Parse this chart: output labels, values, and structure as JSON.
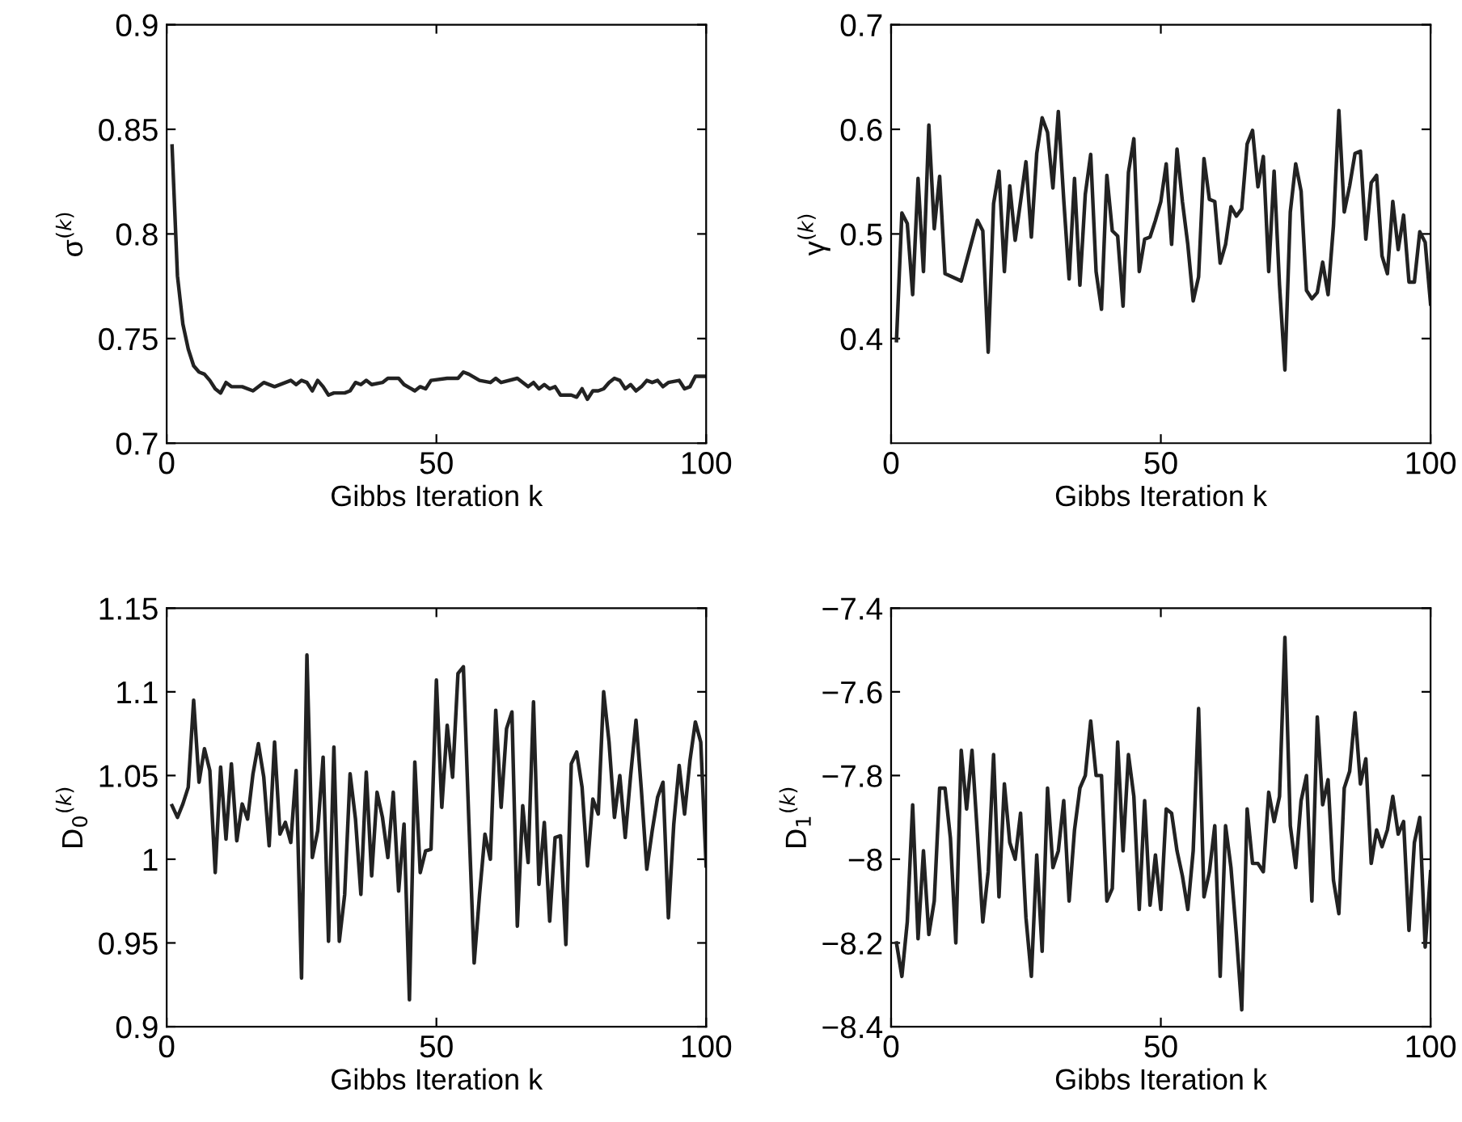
{
  "chart_data": [
    {
      "type": "line",
      "xlabel": "Gibbs Iteration k",
      "ylabel": "σ$^{(k)}$",
      "xlim": [
        0,
        100
      ],
      "xticks": [
        0,
        50,
        100
      ],
      "ylim": [
        0.7,
        0.9
      ],
      "yticks": [
        0.7,
        0.75,
        0.8,
        0.85,
        0.9
      ],
      "grid": false,
      "legend": false,
      "marker": "none",
      "line_style": "solid",
      "series": [
        {
          "color": "#222222",
          "x": [
            1,
            2,
            3,
            4,
            5,
            6,
            7,
            8,
            9,
            10,
            11,
            12,
            14,
            16,
            18,
            20,
            23,
            24,
            25,
            26,
            27,
            28,
            29,
            30,
            31,
            33,
            34,
            35,
            36,
            37,
            38,
            40,
            41,
            43,
            44,
            46,
            47,
            48,
            49,
            52,
            54,
            55,
            56,
            58,
            60,
            61,
            62,
            65,
            67,
            68,
            69,
            70,
            71,
            72,
            73,
            75,
            76,
            77,
            78,
            79,
            80,
            81,
            82,
            83,
            84,
            85,
            86,
            87,
            88,
            89,
            90,
            91,
            92,
            93,
            95,
            96,
            97,
            98,
            100
          ],
          "values": [
            0.842,
            0.78,
            0.757,
            0.745,
            0.737,
            0.734,
            0.733,
            0.73,
            0.726,
            0.724,
            0.729,
            0.727,
            0.727,
            0.725,
            0.729,
            0.727,
            0.73,
            0.728,
            0.73,
            0.729,
            0.725,
            0.73,
            0.727,
            0.723,
            0.724,
            0.724,
            0.725,
            0.729,
            0.728,
            0.73,
            0.728,
            0.729,
            0.731,
            0.731,
            0.728,
            0.725,
            0.727,
            0.726,
            0.73,
            0.731,
            0.731,
            0.734,
            0.733,
            0.73,
            0.729,
            0.731,
            0.729,
            0.731,
            0.727,
            0.729,
            0.726,
            0.728,
            0.726,
            0.727,
            0.723,
            0.723,
            0.722,
            0.726,
            0.721,
            0.725,
            0.725,
            0.726,
            0.729,
            0.731,
            0.73,
            0.726,
            0.728,
            0.725,
            0.727,
            0.73,
            0.729,
            0.73,
            0.727,
            0.729,
            0.73,
            0.726,
            0.727,
            0.732,
            0.732
          ]
        }
      ]
    },
    {
      "type": "line",
      "xlabel": "Gibbs Iteration k",
      "ylabel": "γ$^{(k)}$",
      "xlim": [
        0,
        100
      ],
      "xticks": [
        0,
        50,
        100
      ],
      "ylim": [
        0.3,
        0.7
      ],
      "yticks": [
        0.4,
        0.5,
        0.6,
        0.7
      ],
      "grid": false,
      "legend": false,
      "marker": "none",
      "line_style": "solid",
      "series": [
        {
          "color": "#222222",
          "x": [
            1,
            2,
            3,
            4,
            5,
            6,
            7,
            8,
            9,
            10,
            13,
            16,
            17,
            18,
            19,
            20,
            21,
            22,
            23,
            24,
            25,
            26,
            27,
            28,
            29,
            30,
            31,
            32,
            33,
            34,
            35,
            36,
            37,
            38,
            39,
            40,
            41,
            42,
            43,
            44,
            45,
            46,
            47,
            48,
            49,
            50,
            51,
            52,
            53,
            54,
            55,
            56,
            57,
            58,
            59,
            60,
            61,
            62,
            63,
            64,
            65,
            66,
            67,
            68,
            69,
            70,
            71,
            72,
            73,
            74,
            75,
            76,
            77,
            78,
            79,
            80,
            81,
            82,
            83,
            84,
            85,
            86,
            87,
            88,
            89,
            90,
            91,
            92,
            93,
            94,
            95,
            96,
            97,
            98,
            99,
            100
          ],
          "values": [
            0.398,
            0.52,
            0.51,
            0.442,
            0.553,
            0.464,
            0.604,
            0.505,
            0.555,
            0.462,
            0.455,
            0.513,
            0.503,
            0.387,
            0.529,
            0.56,
            0.464,
            0.546,
            0.494,
            0.531,
            0.569,
            0.497,
            0.577,
            0.611,
            0.597,
            0.544,
            0.617,
            0.533,
            0.457,
            0.553,
            0.451,
            0.538,
            0.576,
            0.464,
            0.428,
            0.556,
            0.503,
            0.498,
            0.431,
            0.559,
            0.591,
            0.464,
            0.495,
            0.497,
            0.513,
            0.531,
            0.567,
            0.49,
            0.581,
            0.531,
            0.49,
            0.436,
            0.459,
            0.572,
            0.533,
            0.531,
            0.472,
            0.49,
            0.526,
            0.517,
            0.524,
            0.586,
            0.599,
            0.545,
            0.574,
            0.464,
            0.56,
            0.451,
            0.37,
            0.521,
            0.567,
            0.541,
            0.446,
            0.438,
            0.444,
            0.473,
            0.442,
            0.508,
            0.618,
            0.521,
            0.546,
            0.577,
            0.579,
            0.495,
            0.549,
            0.556,
            0.479,
            0.462,
            0.531,
            0.485,
            0.518,
            0.454,
            0.454,
            0.502,
            0.492,
            0.433
          ]
        }
      ]
    },
    {
      "type": "line",
      "xlabel": "Gibbs Iteration k",
      "ylabel": "D$_{0}$$^{(k)}$",
      "xlim": [
        0,
        100
      ],
      "xticks": [
        0,
        50,
        100
      ],
      "ylim": [
        0.9,
        1.15
      ],
      "yticks": [
        0.9,
        0.95,
        1,
        1.05,
        1.1,
        1.15
      ],
      "grid": false,
      "legend": false,
      "marker": "none",
      "line_style": "solid",
      "series": [
        {
          "color": "#222222",
          "x": [
            1,
            2,
            3,
            4,
            5,
            6,
            7,
            8,
            9,
            10,
            11,
            12,
            13,
            14,
            15,
            16,
            17,
            18,
            19,
            20,
            21,
            22,
            23,
            24,
            25,
            26,
            27,
            28,
            29,
            30,
            31,
            32,
            33,
            34,
            35,
            36,
            37,
            38,
            39,
            40,
            41,
            42,
            43,
            44,
            45,
            46,
            47,
            48,
            49,
            50,
            51,
            52,
            53,
            54,
            55,
            56,
            57,
            58,
            59,
            60,
            61,
            62,
            63,
            64,
            65,
            66,
            67,
            68,
            69,
            70,
            71,
            72,
            73,
            74,
            75,
            76,
            77,
            78,
            79,
            80,
            81,
            82,
            83,
            84,
            85,
            86,
            87,
            88,
            89,
            90,
            91,
            92,
            93,
            94,
            95,
            96,
            97,
            98,
            99,
            100
          ],
          "values": [
            1.032,
            1.025,
            1.033,
            1.043,
            1.095,
            1.046,
            1.066,
            1.053,
            0.992,
            1.055,
            1.012,
            1.057,
            1.011,
            1.033,
            1.024,
            1.051,
            1.069,
            1.049,
            1.008,
            1.07,
            1.015,
            1.022,
            1.01,
            1.053,
            0.929,
            1.122,
            1.001,
            1.017,
            1.061,
            0.951,
            1.067,
            0.951,
            0.979,
            1.051,
            1.024,
            0.979,
            1.052,
            0.99,
            1.04,
            1.025,
            1.001,
            1.04,
            0.981,
            1.021,
            0.916,
            1.058,
            0.992,
            1.005,
            1.006,
            1.107,
            1.031,
            1.08,
            1.049,
            1.111,
            1.115,
            1.024,
            0.938,
            0.979,
            1.015,
            1.0,
            1.089,
            1.031,
            1.078,
            1.088,
            0.96,
            1.032,
            0.998,
            1.094,
            0.985,
            1.022,
            0.963,
            1.013,
            1.014,
            0.949,
            1.057,
            1.064,
            1.043,
            0.996,
            1.036,
            1.027,
            1.1,
            1.07,
            1.025,
            1.05,
            1.013,
            1.05,
            1.083,
            1.041,
            0.994,
            1.017,
            1.037,
            1.046,
            0.965,
            1.021,
            1.056,
            1.027,
            1.059,
            1.082,
            1.07,
            0.996
          ]
        }
      ]
    },
    {
      "type": "line",
      "xlabel": "Gibbs Iteration k",
      "ylabel": "D$_{1}$$^{(k)}$",
      "xlim": [
        0,
        100
      ],
      "xticks": [
        0,
        50,
        100
      ],
      "ylim": [
        -8.4,
        -7.4
      ],
      "yticks": [
        {
          "value": -8.4,
          "label": "−8.4"
        },
        {
          "value": -8.2,
          "label": "−8.2"
        },
        {
          "value": -8,
          "label": "−8"
        },
        {
          "value": -7.8,
          "label": "−7.8"
        },
        {
          "value": -7.6,
          "label": "−7.6"
        },
        {
          "value": -7.4,
          "label": "−7.4"
        }
      ],
      "grid": false,
      "legend": false,
      "marker": "none",
      "line_style": "solid",
      "series": [
        {
          "color": "#222222",
          "x": [
            1,
            2,
            3,
            4,
            5,
            6,
            7,
            8,
            9,
            10,
            11,
            12,
            13,
            14,
            15,
            16,
            17,
            18,
            19,
            20,
            21,
            22,
            23,
            24,
            25,
            26,
            27,
            28,
            29,
            30,
            31,
            32,
            33,
            34,
            35,
            36,
            37,
            38,
            39,
            40,
            41,
            42,
            43,
            44,
            45,
            46,
            47,
            48,
            49,
            50,
            51,
            52,
            53,
            54,
            55,
            56,
            57,
            58,
            59,
            60,
            61,
            62,
            63,
            64,
            65,
            66,
            67,
            68,
            69,
            70,
            71,
            72,
            73,
            74,
            75,
            76,
            77,
            78,
            79,
            80,
            81,
            82,
            83,
            84,
            85,
            86,
            87,
            88,
            89,
            90,
            91,
            92,
            93,
            94,
            95,
            96,
            97,
            98,
            99,
            100
          ],
          "values": [
            -8.2,
            -8.28,
            -8.15,
            -7.87,
            -8.19,
            -7.98,
            -8.18,
            -8.1,
            -7.83,
            -7.83,
            -7.95,
            -8.2,
            -7.74,
            -7.88,
            -7.74,
            -7.94,
            -8.15,
            -8.03,
            -7.75,
            -8.09,
            -7.82,
            -7.96,
            -8.0,
            -7.89,
            -8.14,
            -8.28,
            -7.99,
            -8.22,
            -7.83,
            -8.02,
            -7.98,
            -7.86,
            -8.1,
            -7.93,
            -7.83,
            -7.8,
            -7.67,
            -7.8,
            -7.8,
            -8.1,
            -8.07,
            -7.72,
            -7.98,
            -7.75,
            -7.85,
            -8.12,
            -7.86,
            -8.11,
            -7.99,
            -8.12,
            -7.88,
            -7.89,
            -7.98,
            -8.04,
            -8.12,
            -7.98,
            -7.64,
            -8.09,
            -8.03,
            -7.92,
            -8.28,
            -7.92,
            -8.02,
            -8.18,
            -8.36,
            -7.88,
            -8.01,
            -8.01,
            -8.03,
            -7.84,
            -7.91,
            -7.85,
            -7.47,
            -7.92,
            -8.02,
            -7.86,
            -7.8,
            -8.1,
            -7.66,
            -7.87,
            -7.81,
            -8.05,
            -8.13,
            -7.83,
            -7.79,
            -7.65,
            -7.82,
            -7.76,
            -8.01,
            -7.93,
            -7.97,
            -7.93,
            -7.85,
            -7.94,
            -7.91,
            -8.17,
            -7.96,
            -7.9,
            -8.21,
            -8.03
          ]
        }
      ]
    }
  ]
}
